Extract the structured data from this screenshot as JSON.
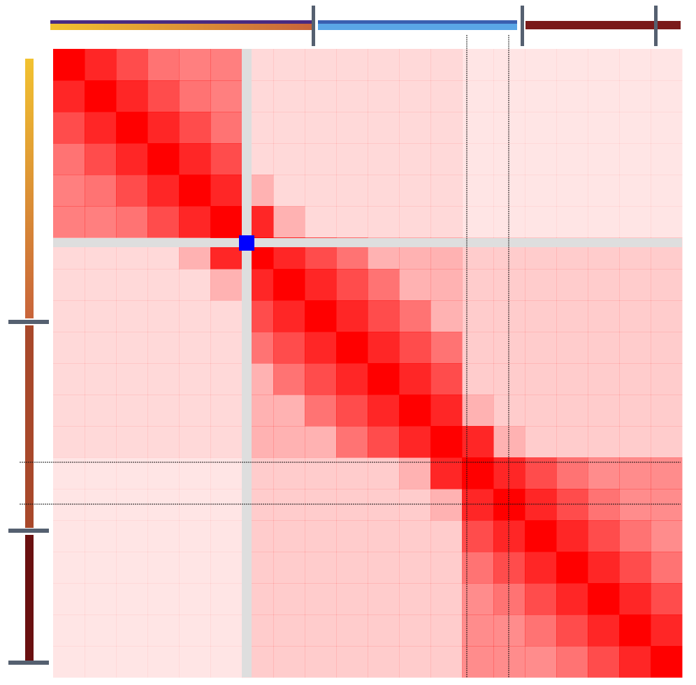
{
  "chart_data": {
    "type": "heatmap",
    "values": [
      [
        1,
        0.85,
        0.7,
        0.55,
        0.5,
        0.5,
        0.15,
        0.15,
        0.15,
        0.15,
        0.15,
        0.15,
        0.15,
        0.1,
        0.1,
        0.1,
        0.1,
        0.1,
        0.1,
        0.1
      ],
      [
        0.85,
        1,
        0.85,
        0.7,
        0.55,
        0.5,
        0.15,
        0.15,
        0.15,
        0.15,
        0.15,
        0.15,
        0.15,
        0.1,
        0.1,
        0.1,
        0.1,
        0.1,
        0.1,
        0.1
      ],
      [
        0.7,
        0.85,
        1,
        0.85,
        0.7,
        0.55,
        0.15,
        0.15,
        0.15,
        0.15,
        0.15,
        0.15,
        0.15,
        0.1,
        0.1,
        0.1,
        0.1,
        0.1,
        0.1,
        0.1
      ],
      [
        0.55,
        0.7,
        0.85,
        1,
        0.85,
        0.7,
        0.15,
        0.15,
        0.15,
        0.15,
        0.15,
        0.15,
        0.15,
        0.1,
        0.1,
        0.1,
        0.1,
        0.1,
        0.1,
        0.1
      ],
      [
        0.5,
        0.55,
        0.7,
        0.85,
        1,
        0.85,
        0.3,
        0.15,
        0.15,
        0.15,
        0.15,
        0.15,
        0.15,
        0.1,
        0.1,
        0.1,
        0.1,
        0.1,
        0.1,
        0.1
      ],
      [
        0.5,
        0.5,
        0.55,
        0.7,
        0.85,
        1,
        0.85,
        0.3,
        0.15,
        0.15,
        0.15,
        0.15,
        0.15,
        0.1,
        0.1,
        0.1,
        0.1,
        0.1,
        0.1,
        0.1
      ],
      [
        0.15,
        0.15,
        0.15,
        0.15,
        0.3,
        0.85,
        1,
        0.85,
        0.7,
        0.55,
        0.3,
        0.3,
        0.3,
        0.2,
        0.2,
        0.2,
        0.2,
        0.2,
        0.2,
        0.2
      ],
      [
        0.15,
        0.15,
        0.15,
        0.15,
        0.15,
        0.3,
        0.85,
        1,
        0.85,
        0.7,
        0.55,
        0.3,
        0.3,
        0.2,
        0.2,
        0.2,
        0.2,
        0.2,
        0.2,
        0.2
      ],
      [
        0.15,
        0.15,
        0.15,
        0.15,
        0.15,
        0.15,
        0.7,
        0.85,
        1,
        0.85,
        0.7,
        0.55,
        0.3,
        0.2,
        0.2,
        0.2,
        0.2,
        0.2,
        0.2,
        0.2
      ],
      [
        0.15,
        0.15,
        0.15,
        0.15,
        0.15,
        0.15,
        0.55,
        0.7,
        0.85,
        1,
        0.85,
        0.7,
        0.55,
        0.2,
        0.2,
        0.2,
        0.2,
        0.2,
        0.2,
        0.2
      ],
      [
        0.15,
        0.15,
        0.15,
        0.15,
        0.15,
        0.15,
        0.3,
        0.55,
        0.7,
        0.85,
        1,
        0.85,
        0.7,
        0.2,
        0.2,
        0.2,
        0.2,
        0.2,
        0.2,
        0.2
      ],
      [
        0.15,
        0.15,
        0.15,
        0.15,
        0.15,
        0.15,
        0.3,
        0.3,
        0.55,
        0.7,
        0.85,
        1,
        0.85,
        0.3,
        0.2,
        0.2,
        0.2,
        0.2,
        0.2,
        0.2
      ],
      [
        0.15,
        0.15,
        0.15,
        0.15,
        0.15,
        0.15,
        0.3,
        0.3,
        0.3,
        0.55,
        0.7,
        0.85,
        1,
        0.85,
        0.3,
        0.2,
        0.2,
        0.2,
        0.2,
        0.2
      ],
      [
        0.1,
        0.1,
        0.1,
        0.1,
        0.1,
        0.1,
        0.2,
        0.2,
        0.2,
        0.2,
        0.2,
        0.3,
        0.85,
        1,
        0.85,
        0.7,
        0.55,
        0.45,
        0.45,
        0.45
      ],
      [
        0.1,
        0.1,
        0.1,
        0.1,
        0.1,
        0.1,
        0.2,
        0.2,
        0.2,
        0.2,
        0.2,
        0.2,
        0.3,
        0.85,
        1,
        0.85,
        0.7,
        0.55,
        0.45,
        0.45
      ],
      [
        0.1,
        0.1,
        0.1,
        0.1,
        0.1,
        0.1,
        0.2,
        0.2,
        0.2,
        0.2,
        0.2,
        0.2,
        0.2,
        0.7,
        0.85,
        1,
        0.85,
        0.7,
        0.55,
        0.45
      ],
      [
        0.1,
        0.1,
        0.1,
        0.1,
        0.1,
        0.1,
        0.2,
        0.2,
        0.2,
        0.2,
        0.2,
        0.2,
        0.2,
        0.55,
        0.7,
        0.85,
        1,
        0.85,
        0.7,
        0.55
      ],
      [
        0.1,
        0.1,
        0.1,
        0.1,
        0.1,
        0.1,
        0.2,
        0.2,
        0.2,
        0.2,
        0.2,
        0.2,
        0.2,
        0.45,
        0.55,
        0.7,
        0.85,
        1,
        0.85,
        0.7
      ],
      [
        0.1,
        0.1,
        0.1,
        0.1,
        0.1,
        0.1,
        0.2,
        0.2,
        0.2,
        0.2,
        0.2,
        0.2,
        0.2,
        0.45,
        0.45,
        0.55,
        0.7,
        0.85,
        1,
        0.85
      ],
      [
        0.1,
        0.1,
        0.1,
        0.1,
        0.1,
        0.1,
        0.2,
        0.2,
        0.2,
        0.2,
        0.2,
        0.2,
        0.2,
        0.45,
        0.45,
        0.45,
        0.55,
        0.7,
        0.85,
        1
      ]
    ]
  }
}
